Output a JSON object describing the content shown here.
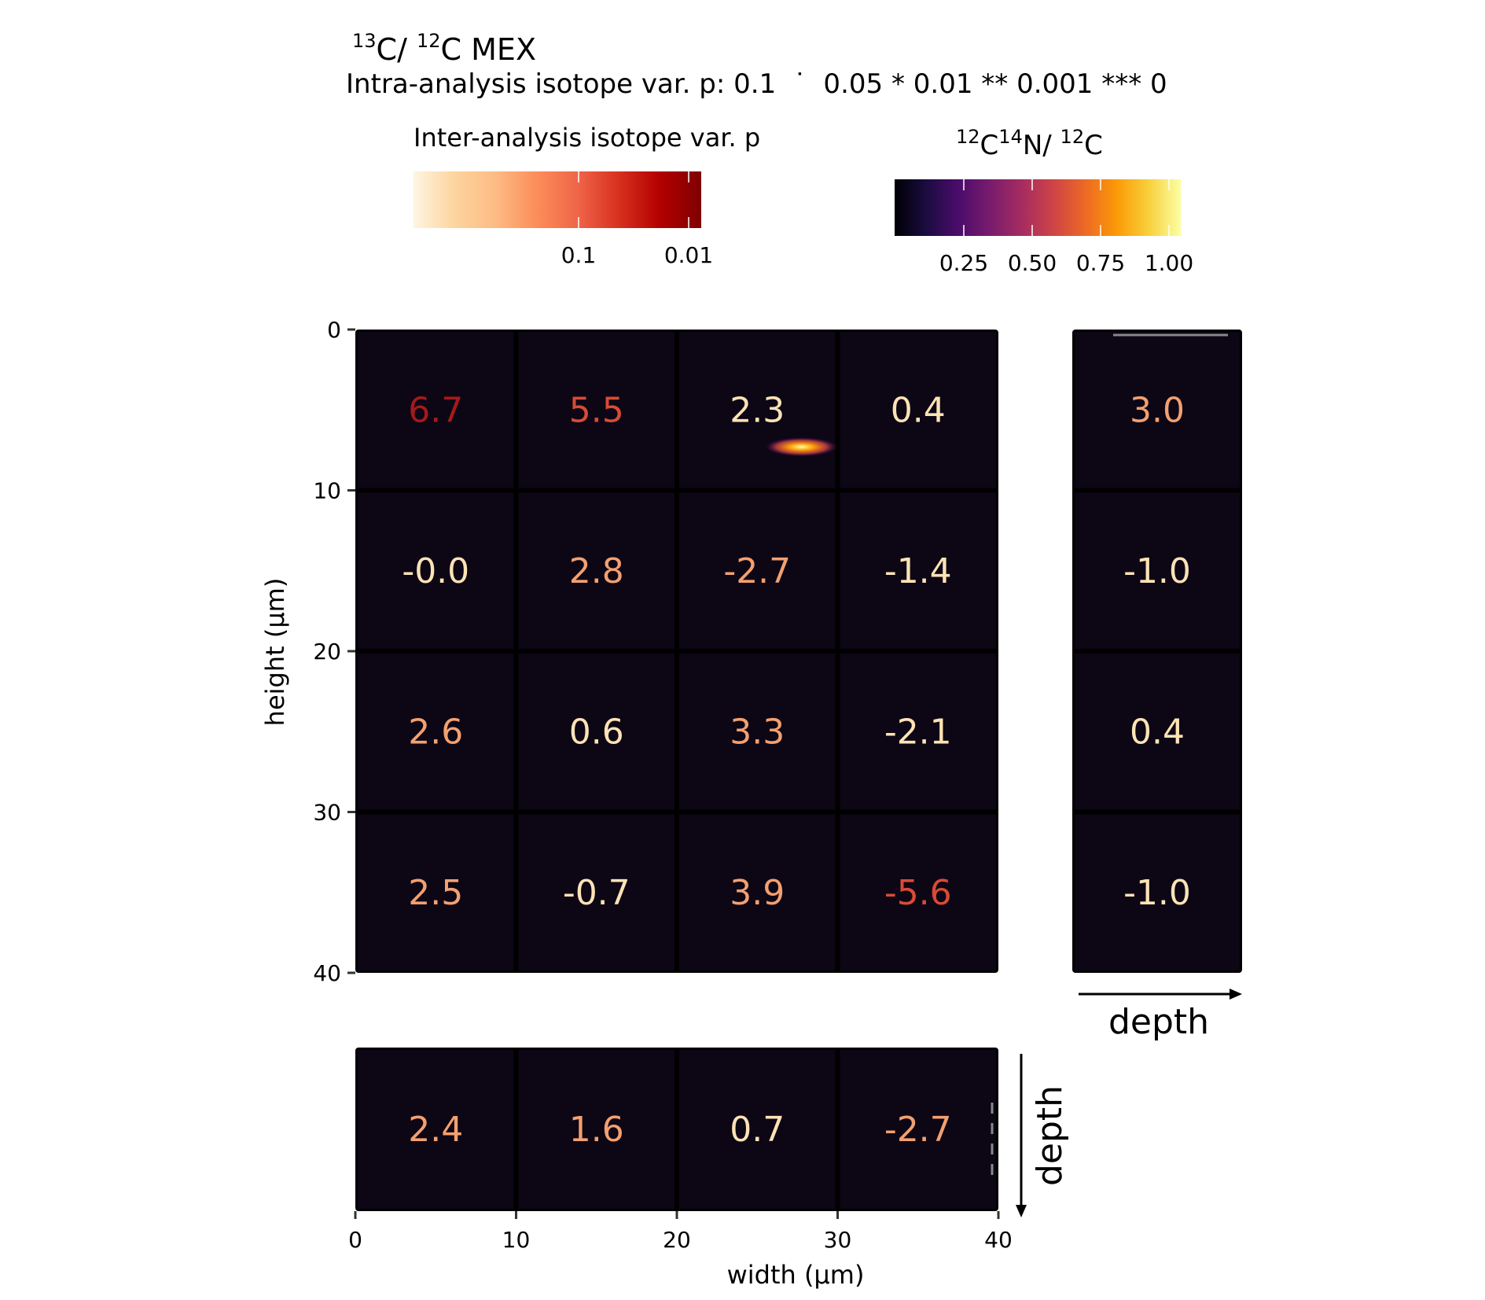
{
  "title": {
    "mass_a": "13",
    "elem_a": "C/ ",
    "mass_b": "12",
    "elem_b": "C",
    "suffix": " MEX"
  },
  "subtitle": "Intra-analysis isotope var. p: 0.1  ˙  0.05 * 0.01 ** 0.001 *** 0",
  "legend_p": {
    "title": "Inter-analysis isotope var. p",
    "ticks": [
      "0.1",
      "0.01"
    ],
    "gradient": [
      "#fff5e2",
      "#fdd49e",
      "#fdbb84",
      "#fc8d59",
      "#ef6548",
      "#d7301f",
      "#b30000",
      "#7f0000"
    ]
  },
  "legend_ratio": {
    "title": {
      "m1": "12",
      "e1": "C",
      "m2": "14",
      "e2": "N/ ",
      "m3": "12",
      "e3": "C"
    },
    "ticks": [
      "0.25",
      "0.50",
      "0.75",
      "1.00"
    ],
    "gradient": [
      "#000004",
      "#1b0c41",
      "#4a0c6b",
      "#781c6d",
      "#a52c60",
      "#cf4446",
      "#ed6925",
      "#fb9b06",
      "#f7d13d",
      "#fcffa4"
    ]
  },
  "axes": {
    "ylabel": "height (µm)",
    "xlabel": "width (µm)",
    "y_ticks": [
      "0",
      "10",
      "20",
      "30",
      "40"
    ],
    "x_ticks": [
      "0",
      "10",
      "20",
      "30",
      "40"
    ],
    "depth_right": "depth",
    "depth_bottom": "depth"
  },
  "colors": {
    "panel_bg": "#0d0615",
    "dark_red": "#a51a1a",
    "red": "#d94b35",
    "orange": "#f3a070",
    "light": "#fde3b5"
  },
  "chart_data": {
    "type": "heatmap",
    "xlim": [
      0,
      40
    ],
    "ylim": [
      0,
      40
    ],
    "grid": [
      [
        {
          "value": "6.7",
          "color": "dark_red"
        },
        {
          "value": "5.5",
          "color": "red"
        },
        {
          "value": "2.3",
          "color": "light"
        },
        {
          "value": "0.4",
          "color": "light"
        }
      ],
      [
        {
          "value": "-0.0",
          "color": "light"
        },
        {
          "value": "2.8",
          "color": "orange"
        },
        {
          "value": "-2.7",
          "color": "orange"
        },
        {
          "value": "-1.4",
          "color": "light"
        }
      ],
      [
        {
          "value": "2.6",
          "color": "orange"
        },
        {
          "value": "0.6",
          "color": "light"
        },
        {
          "value": "3.3",
          "color": "orange"
        },
        {
          "value": "-2.1",
          "color": "light"
        }
      ],
      [
        {
          "value": "2.5",
          "color": "orange"
        },
        {
          "value": "-0.7",
          "color": "light"
        },
        {
          "value": "3.9",
          "color": "orange"
        },
        {
          "value": "-5.6",
          "color": "red"
        }
      ]
    ],
    "right_depth": [
      {
        "value": "3.0",
        "color": "orange"
      },
      {
        "value": "-1.0",
        "color": "light"
      },
      {
        "value": "0.4",
        "color": "light"
      },
      {
        "value": "-1.0",
        "color": "light"
      }
    ],
    "bottom_depth": [
      {
        "value": "2.4",
        "color": "orange"
      },
      {
        "value": "1.6",
        "color": "orange"
      },
      {
        "value": "0.7",
        "color": "light"
      },
      {
        "value": "-2.7",
        "color": "orange"
      }
    ],
    "hotspot": {
      "x": [
        25.5,
        30
      ],
      "y": [
        6.8,
        7.8
      ],
      "ratio_max": 1.0
    }
  }
}
